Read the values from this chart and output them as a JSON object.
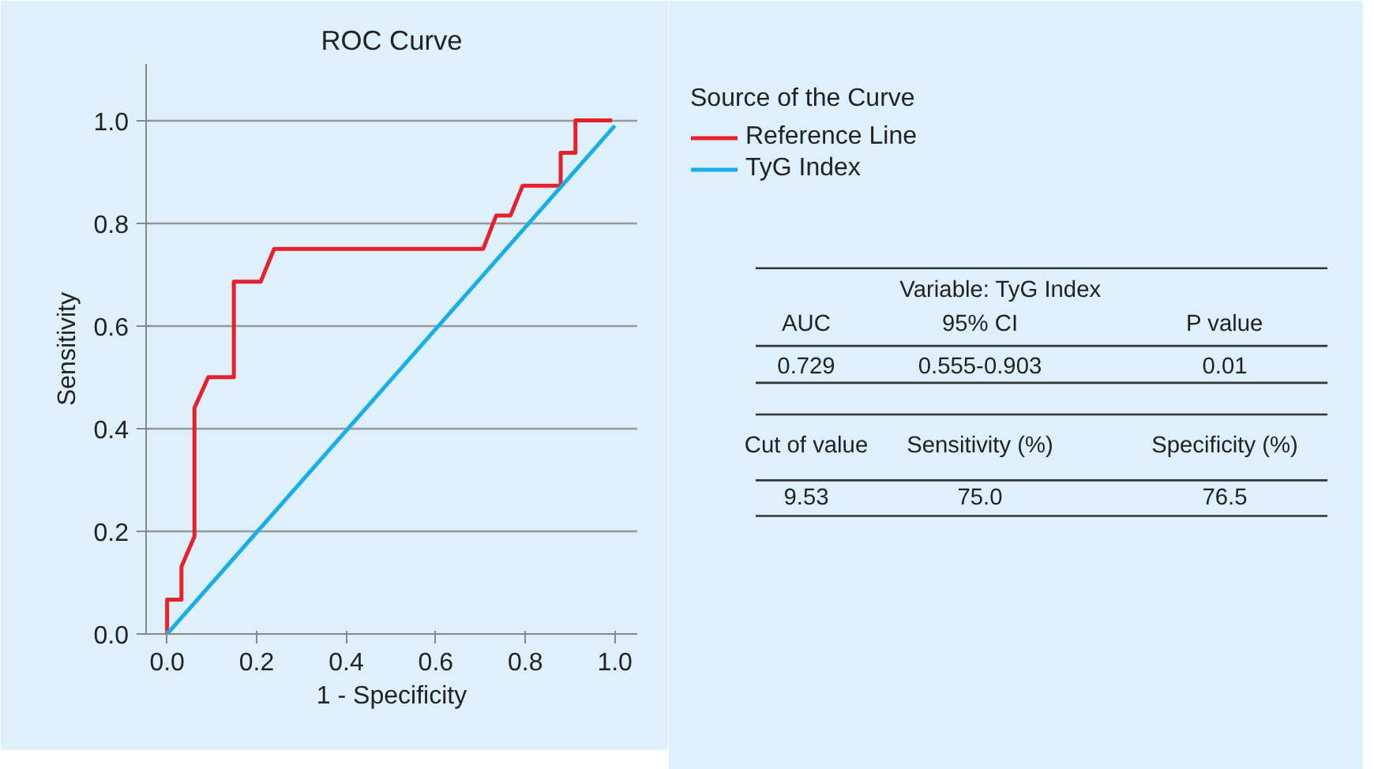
{
  "chart_data": {
    "type": "line",
    "title": "ROC Curve",
    "xlabel": "1 - Specificity",
    "ylabel": "Sensitivity",
    "legend_title": "Source of the Curve",
    "series": [
      {
        "name": "Reference Line",
        "color": "#e8202a",
        "x": [
          0,
          0,
          0.032,
          0.032,
          0.061,
          0.061,
          0.092,
          0.149,
          0.149,
          0.209,
          0.239,
          0.706,
          0.735,
          0.767,
          0.794,
          0.879,
          0.879,
          0.912,
          0.912,
          0.994
        ],
        "values": [
          0,
          0.067,
          0.067,
          0.131,
          0.19,
          0.44,
          0.5,
          0.5,
          0.686,
          0.686,
          0.75,
          0.75,
          0.815,
          0.815,
          0.873,
          0.873,
          0.937,
          0.937,
          1.0,
          1.0
        ]
      },
      {
        "name": "TyG Index",
        "color": "#1aaee8",
        "x": [
          0,
          1.0
        ],
        "values": [
          0,
          0.99
        ]
      }
    ],
    "xlim": [
      -0.047,
      1.05
    ],
    "ylim": [
      0,
      1.11
    ],
    "xticks": [
      {
        "value": 0,
        "label": "0.0"
      },
      0.2,
      0.4,
      0.6,
      0.8,
      {
        "value": 1,
        "label": "1.0"
      }
    ],
    "yticks": [
      {
        "value": 0,
        "label": "0.0"
      },
      0.2,
      0.4,
      0.6,
      0.8,
      {
        "value": 1,
        "label": "1.0"
      }
    ],
    "grid": "y",
    "legend": "right",
    "line_style": "solid",
    "marker": "none",
    "annotations": [
      "Variable: TyG Index",
      "AUC",
      "95% CI",
      "P value",
      "0.729",
      "0.555-0.903",
      "0.01",
      "Cut of value",
      "Sensitivity (%)",
      "Specificity (%)",
      "9.53",
      "75.0",
      "76.5"
    ]
  }
}
